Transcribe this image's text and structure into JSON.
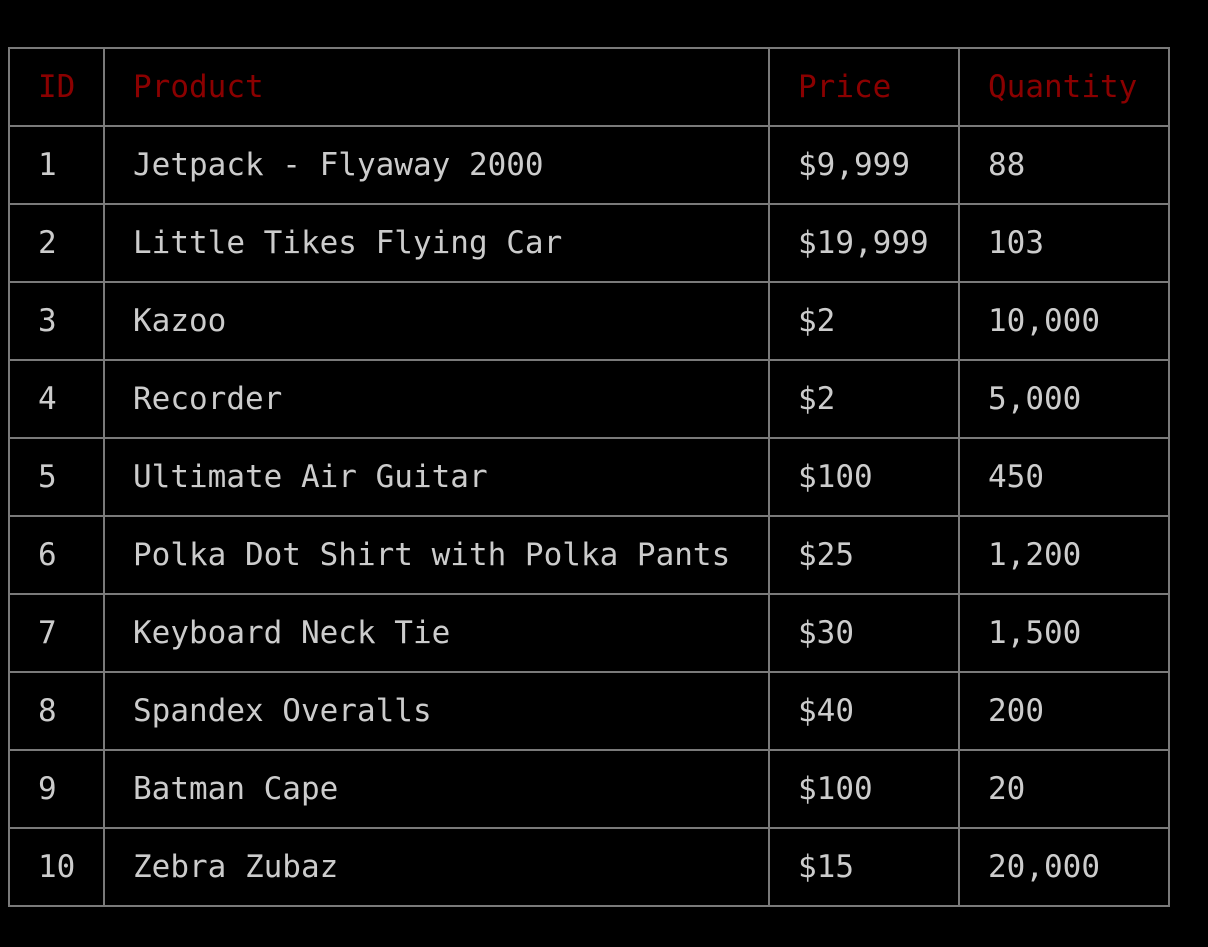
{
  "colors": {
    "background": "#000000",
    "header_text": "#8b0000",
    "cell_text": "#cccccc",
    "border": "#7a7a7a"
  },
  "table": {
    "headers": [
      "ID",
      "Product",
      "Price",
      "Quantity"
    ],
    "rows": [
      [
        "1",
        "Jetpack - Flyaway 2000",
        "$9,999",
        "88"
      ],
      [
        "2",
        "Little Tikes Flying Car",
        "$19,999",
        "103"
      ],
      [
        "3",
        "Kazoo",
        "$2",
        "10,000"
      ],
      [
        "4",
        "Recorder",
        "$2",
        "5,000"
      ],
      [
        "5",
        "Ultimate Air Guitar",
        "$100",
        "450"
      ],
      [
        "6",
        "Polka Dot Shirt with Polka Pants",
        "$25",
        "1,200"
      ],
      [
        "7",
        "Keyboard Neck Tie",
        "$30",
        "1,500"
      ],
      [
        "8",
        "Spandex Overalls",
        "$40",
        "200"
      ],
      [
        "9",
        "Batman Cape",
        "$100",
        "20"
      ],
      [
        "10",
        "Zebra Zubaz",
        "$15",
        "20,000"
      ]
    ]
  }
}
